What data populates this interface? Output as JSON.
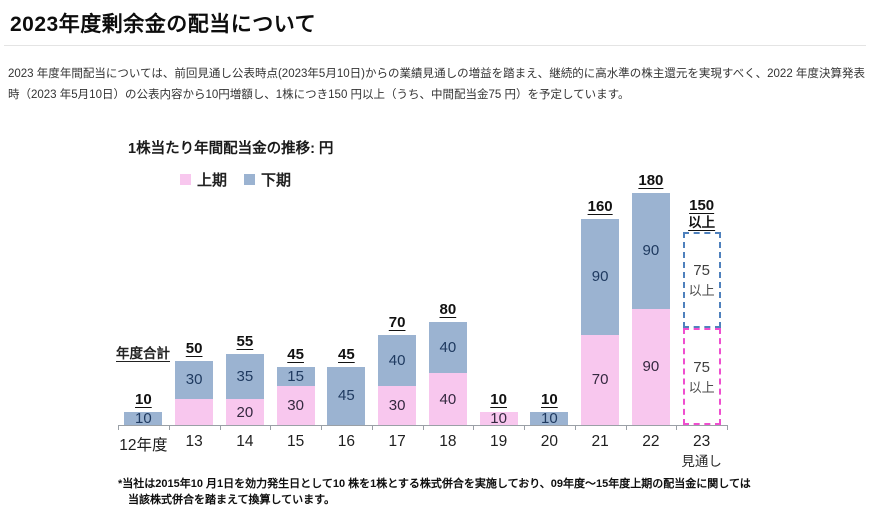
{
  "page": {
    "title": "2023年度剰余金の配当について",
    "body_text": "2023 年度年間配当については、前回見通し公表時点(2023年5月10日)からの業績見通しの増益を踏まえ、継続的に高水準の株主還元を実現すべく、2022 年度決算発表時（2023 年5月10日）の公表内容から10円増額し、1株につき150 円以上（うち、中間配当金75 円）を予定しています。",
    "footnote_line1": "*当社は2015年10 月1日を効力発生日として10 株を1株とする株式併合を実施しており、09年度～15年度上期の配当金に関しては",
    "footnote_line2": "当該株式併合を踏まえて換算しています。"
  },
  "chart_data": {
    "type": "bar",
    "stacked": true,
    "title": "1株当たり年間配当金の推移: 円",
    "ylabel": "円",
    "ylim": [
      0,
      190
    ],
    "grid": false,
    "legend_position": "top",
    "total_series_label": "年度合計",
    "legend": [
      {
        "name": "上期",
        "color": "#f8c7ee"
      },
      {
        "name": "下期",
        "color": "#9bb3d1"
      }
    ],
    "colors": {
      "上期": "#f8c7ee",
      "下期": "#9bb3d1",
      "forecast_border_first_half": "#ef4ecf",
      "forecast_border_second_half": "#4f81bd"
    },
    "categories": [
      "12年度",
      "13",
      "14",
      "15",
      "16",
      "17",
      "18",
      "19",
      "20",
      "21",
      "22",
      "23"
    ],
    "bars": [
      {
        "category": "12年度",
        "total_label": "10",
        "segments": [
          {
            "series": "下期",
            "value": 10,
            "label": "10"
          }
        ]
      },
      {
        "category": "13",
        "total_label": "50",
        "segments": [
          {
            "series": "上期",
            "value": 20,
            "label": ""
          },
          {
            "series": "下期",
            "value": 30,
            "label": "30"
          }
        ]
      },
      {
        "category": "14",
        "total_label": "55",
        "segments": [
          {
            "series": "上期",
            "value": 20,
            "label": "20"
          },
          {
            "series": "下期",
            "value": 35,
            "label": "35"
          }
        ]
      },
      {
        "category": "15",
        "total_label": "45",
        "segments": [
          {
            "series": "上期",
            "value": 30,
            "label": "30"
          },
          {
            "series": "下期",
            "value": 15,
            "label": "15"
          }
        ]
      },
      {
        "category": "16",
        "total_label": "45",
        "segments": [
          {
            "series": "下期",
            "value": 45,
            "label": "45"
          }
        ]
      },
      {
        "category": "17",
        "total_label": "70",
        "segments": [
          {
            "series": "上期",
            "value": 30,
            "label": "30"
          },
          {
            "series": "下期",
            "value": 40,
            "label": "40"
          }
        ]
      },
      {
        "category": "18",
        "total_label": "80",
        "segments": [
          {
            "series": "上期",
            "value": 40,
            "label": "40"
          },
          {
            "series": "下期",
            "value": 40,
            "label": "40"
          }
        ]
      },
      {
        "category": "19",
        "total_label": "10",
        "segments": [
          {
            "series": "上期",
            "value": 10,
            "label": "10"
          }
        ]
      },
      {
        "category": "20",
        "total_label": "10",
        "segments": [
          {
            "series": "下期",
            "value": 10,
            "label": "10"
          }
        ]
      },
      {
        "category": "21",
        "total_label": "160",
        "segments": [
          {
            "series": "上期",
            "value": 70,
            "label": "70"
          },
          {
            "series": "下期",
            "value": 90,
            "label": "90"
          }
        ]
      },
      {
        "category": "22",
        "total_label": "180",
        "segments": [
          {
            "series": "上期",
            "value": 90,
            "label": "90"
          },
          {
            "series": "下期",
            "value": 90,
            "label": "90"
          }
        ]
      },
      {
        "category": "23",
        "category_sublabel": "見通し",
        "total_label": "150",
        "total_sublabel": "以上",
        "forecast": true,
        "segments": [
          {
            "series": "上期",
            "value": 75,
            "label": "75",
            "sublabel": "以上",
            "dashed": true
          },
          {
            "series": "下期",
            "value": 75,
            "label": "75",
            "sublabel": "以上",
            "dashed": true
          }
        ]
      }
    ]
  }
}
